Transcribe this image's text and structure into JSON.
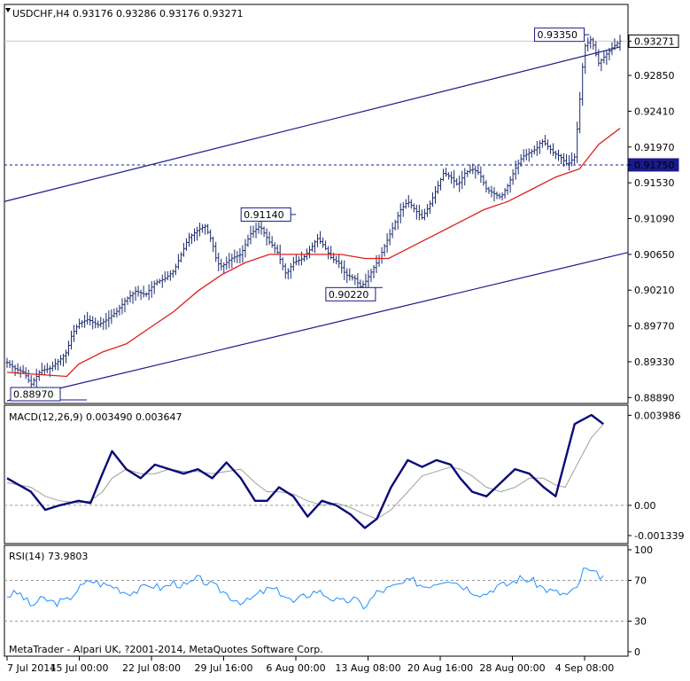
{
  "price_panel": {
    "header": "USDCHF,H4  0.93176 0.93286 0.93176 0.93271",
    "ticks": [
      "0.93271",
      "0.92850",
      "0.92410",
      "0.91970",
      "0.91750",
      "0.91530",
      "0.91090",
      "0.90650",
      "0.90210",
      "0.89770",
      "0.89330",
      "0.88890"
    ],
    "annotations": [
      "0.93350",
      "0.91140",
      "0.90220",
      "0.88970"
    ],
    "current_price_label": "0.93271",
    "hline_label": "0.91750"
  },
  "macd_panel": {
    "header": "MACD(12,26,9) 0.003490 0.003647",
    "ticks": [
      "0.003986",
      "0.00",
      "-0.001339"
    ]
  },
  "rsi_panel": {
    "header": "RSI(14) 73.9803",
    "ticks": [
      "100",
      "70",
      "30",
      "0"
    ],
    "copyright": "MetaTrader - Alpari UK, ?2001-2014, MetaQuotes Software Corp."
  },
  "time_axis": [
    "7 Jul 2014",
    "15 Jul 00:00",
    "22 Jul 08:00",
    "29 Jul 16:00",
    "6 Aug 00:00",
    "13 Aug 08:00",
    "20 Aug 16:00",
    "28 Aug 00:00",
    "4 Sep 08:00"
  ],
  "colors": {
    "bars": "#1a2a6c",
    "channel": "#1a1a8c",
    "ma": "#e01e1e",
    "macd": "#0a0a78",
    "signal": "#a0a0a0",
    "rsi": "#1e90ff",
    "dashed": "#1a1a8c"
  },
  "chart_data": [
    {
      "type": "candlestick",
      "title": "USDCHF,H4",
      "ylim": [
        0.8885,
        0.9345
      ],
      "x_labels": [
        "7 Jul 2014",
        "15 Jul 00:00",
        "22 Jul 08:00",
        "29 Jul 16:00",
        "6 Aug 00:00",
        "13 Aug 08:00",
        "20 Aug 16:00",
        "28 Aug 00:00",
        "4 Sep 08:00"
      ],
      "close_path": [
        [
          0,
          0.8932
        ],
        [
          0.3,
          0.8925
        ],
        [
          0.7,
          0.892
        ],
        [
          1.0,
          0.8905
        ],
        [
          1.4,
          0.8922
        ],
        [
          1.8,
          0.8925
        ],
        [
          2.2,
          0.8935
        ],
        [
          2.5,
          0.8945
        ],
        [
          2.7,
          0.8965
        ],
        [
          3.0,
          0.898
        ],
        [
          3.4,
          0.8985
        ],
        [
          3.8,
          0.8978
        ],
        [
          4.2,
          0.8985
        ],
        [
          4.6,
          0.8995
        ],
        [
          5.0,
          0.901
        ],
        [
          5.4,
          0.902
        ],
        [
          5.8,
          0.9015
        ],
        [
          6.2,
          0.903
        ],
        [
          6.6,
          0.9035
        ],
        [
          7.0,
          0.9045
        ],
        [
          7.3,
          0.9065
        ],
        [
          7.6,
          0.9085
        ],
        [
          8.0,
          0.9095
        ],
        [
          8.3,
          0.91
        ],
        [
          8.6,
          0.908
        ],
        [
          8.8,
          0.9055
        ],
        [
          9.0,
          0.905
        ],
        [
          9.4,
          0.906
        ],
        [
          9.8,
          0.9065
        ],
        [
          10.2,
          0.909
        ],
        [
          10.6,
          0.91
        ],
        [
          11.0,
          0.908
        ],
        [
          11.3,
          0.907
        ],
        [
          11.7,
          0.904
        ],
        [
          12.0,
          0.9055
        ],
        [
          12.4,
          0.906
        ],
        [
          12.8,
          0.9075
        ],
        [
          13.0,
          0.9085
        ],
        [
          13.3,
          0.9075
        ],
        [
          13.6,
          0.906
        ],
        [
          13.9,
          0.9055
        ],
        [
          14.2,
          0.904
        ],
        [
          14.6,
          0.9035
        ],
        [
          14.8,
          0.9025
        ],
        [
          15.0,
          0.903
        ],
        [
          15.3,
          0.9045
        ],
        [
          15.6,
          0.906
        ],
        [
          15.9,
          0.908
        ],
        [
          16.2,
          0.91
        ],
        [
          16.5,
          0.912
        ],
        [
          16.8,
          0.913
        ],
        [
          17.1,
          0.912
        ],
        [
          17.4,
          0.911
        ],
        [
          17.7,
          0.9125
        ],
        [
          18.0,
          0.9145
        ],
        [
          18.3,
          0.9165
        ],
        [
          18.6,
          0.916
        ],
        [
          18.9,
          0.915
        ],
        [
          19.2,
          0.9165
        ],
        [
          19.5,
          0.917
        ],
        [
          19.8,
          0.9165
        ],
        [
          20.1,
          0.9145
        ],
        [
          20.4,
          0.914
        ],
        [
          20.7,
          0.9135
        ],
        [
          21.0,
          0.915
        ],
        [
          21.3,
          0.917
        ],
        [
          21.6,
          0.9185
        ],
        [
          21.9,
          0.919
        ],
        [
          22.2,
          0.9195
        ],
        [
          22.4,
          0.9205
        ],
        [
          22.6,
          0.92
        ],
        [
          22.9,
          0.919
        ],
        [
          23.2,
          0.9185
        ],
        [
          23.5,
          0.9175
        ],
        [
          23.8,
          0.9185
        ],
        [
          24.0,
          0.925
        ],
        [
          24.2,
          0.932
        ],
        [
          24.5,
          0.933
        ],
        [
          24.8,
          0.93
        ],
        [
          25.1,
          0.931
        ],
        [
          25.4,
          0.932
        ],
        [
          25.7,
          0.9327
        ]
      ],
      "ma_path": [
        [
          0,
          0.892
        ],
        [
          2.5,
          0.8915
        ],
        [
          3.0,
          0.893
        ],
        [
          4.0,
          0.8945
        ],
        [
          5.0,
          0.8955
        ],
        [
          6.0,
          0.8975
        ],
        [
          7.0,
          0.8995
        ],
        [
          8.0,
          0.902
        ],
        [
          9.0,
          0.904
        ],
        [
          10.0,
          0.9055
        ],
        [
          11.0,
          0.9065
        ],
        [
          12.0,
          0.9065
        ],
        [
          13.0,
          0.9065
        ],
        [
          14.0,
          0.9065
        ],
        [
          15.0,
          0.906
        ],
        [
          16.0,
          0.906
        ],
        [
          17.0,
          0.9075
        ],
        [
          18.0,
          0.909
        ],
        [
          19.0,
          0.9105
        ],
        [
          20.0,
          0.912
        ],
        [
          21.0,
          0.913
        ],
        [
          22.0,
          0.9145
        ],
        [
          23.0,
          0.916
        ],
        [
          24.0,
          0.917
        ],
        [
          24.8,
          0.92
        ],
        [
          25.7,
          0.922
        ]
      ],
      "channel_upper": [
        [
          0,
          0.913
        ],
        [
          25.7,
          0.932
        ]
      ],
      "channel_lower": [
        [
          0,
          0.8885
        ],
        [
          25.7,
          0.9065
        ]
      ],
      "horizontal_line": 0.9175,
      "annotations": [
        {
          "label": "0.93350",
          "x": 23.9,
          "y": 0.9335
        },
        {
          "label": "0.91140",
          "x": 11.0,
          "y": 0.9114
        },
        {
          "label": "0.90220",
          "x": 15.0,
          "y": 0.9022
        },
        {
          "label": "0.88970",
          "x": 1.3,
          "y": 0.8897
        }
      ]
    },
    {
      "type": "line",
      "title": "MACD(12,26,9)",
      "ylim": [
        -0.0013,
        0.004
      ],
      "series": [
        {
          "name": "MACD",
          "points": [
            [
              0,
              0.0012
            ],
            [
              1,
              0.0006
            ],
            [
              1.6,
              -0.0002
            ],
            [
              2.2,
              0.0
            ],
            [
              3.0,
              0.0002
            ],
            [
              3.5,
              0.0001
            ],
            [
              4.0,
              0.0014
            ],
            [
              4.4,
              0.0024
            ],
            [
              5,
              0.0016
            ],
            [
              5.6,
              0.0012
            ],
            [
              6.2,
              0.0018
            ],
            [
              6.8,
              0.0016
            ],
            [
              7.4,
              0.0014
            ],
            [
              8.0,
              0.0016
            ],
            [
              8.6,
              0.0012
            ],
            [
              9.2,
              0.0019
            ],
            [
              9.8,
              0.0012
            ],
            [
              10.4,
              0.0002
            ],
            [
              10.9,
              0.0002
            ],
            [
              11.4,
              0.0008
            ],
            [
              12.0,
              0.0004
            ],
            [
              12.6,
              -0.0005
            ],
            [
              13.2,
              0.0002
            ],
            [
              13.8,
              0.0
            ],
            [
              14.4,
              -0.0004
            ],
            [
              15.0,
              -0.001
            ],
            [
              15.5,
              -0.0006
            ],
            [
              16.1,
              0.0008
            ],
            [
              16.8,
              0.002
            ],
            [
              17.4,
              0.0017
            ],
            [
              18.0,
              0.002
            ],
            [
              18.6,
              0.0018
            ],
            [
              19.0,
              0.0012
            ],
            [
              19.5,
              0.0006
            ],
            [
              20.1,
              0.0004
            ],
            [
              20.7,
              0.001
            ],
            [
              21.3,
              0.0016
            ],
            [
              21.9,
              0.0014
            ],
            [
              22.5,
              0.0008
            ],
            [
              23.0,
              0.0004
            ],
            [
              23.4,
              0.002
            ],
            [
              23.8,
              0.0036
            ],
            [
              24.5,
              0.004
            ],
            [
              25.0,
              0.0036
            ]
          ]
        },
        {
          "name": "Signal",
          "points": [
            [
              0,
              0.001
            ],
            [
              1,
              0.0008
            ],
            [
              1.6,
              0.0004
            ],
            [
              2.2,
              0.0002
            ],
            [
              3.0,
              0.0001
            ],
            [
              3.5,
              0.0002
            ],
            [
              4.0,
              0.0006
            ],
            [
              4.4,
              0.0012
            ],
            [
              5,
              0.0016
            ],
            [
              5.6,
              0.0014
            ],
            [
              6.2,
              0.0014
            ],
            [
              6.8,
              0.0016
            ],
            [
              7.4,
              0.0015
            ],
            [
              8.0,
              0.0015
            ],
            [
              8.6,
              0.0014
            ],
            [
              9.2,
              0.0015
            ],
            [
              9.8,
              0.0016
            ],
            [
              10.4,
              0.001
            ],
            [
              10.9,
              0.0006
            ],
            [
              11.4,
              0.0006
            ],
            [
              12.0,
              0.0005
            ],
            [
              12.6,
              0.0002
            ],
            [
              13.2,
              0.0
            ],
            [
              13.8,
              0.0001
            ],
            [
              14.4,
              -0.0001
            ],
            [
              15.0,
              -0.0004
            ],
            [
              15.5,
              -0.0006
            ],
            [
              16.1,
              -0.0002
            ],
            [
              16.8,
              0.0006
            ],
            [
              17.4,
              0.0013
            ],
            [
              18.0,
              0.0015
            ],
            [
              18.6,
              0.0017
            ],
            [
              19.0,
              0.0016
            ],
            [
              19.5,
              0.0013
            ],
            [
              20.1,
              0.0008
            ],
            [
              20.7,
              0.0006
            ],
            [
              21.3,
              0.0008
            ],
            [
              21.9,
              0.0012
            ],
            [
              22.5,
              0.0012
            ],
            [
              23.0,
              0.0009
            ],
            [
              23.4,
              0.0008
            ],
            [
              23.8,
              0.0016
            ],
            [
              24.5,
              0.003
            ],
            [
              25.0,
              0.0036
            ]
          ]
        }
      ]
    },
    {
      "type": "line",
      "title": "RSI(14)",
      "ylim": [
        0,
        100
      ],
      "levels": [
        70,
        30
      ],
      "series": [
        {
          "name": "RSI",
          "points": [
            [
              0,
              55
            ],
            [
              0.5,
              58
            ],
            [
              1.0,
              45
            ],
            [
              1.5,
              52
            ],
            [
              2.0,
              48
            ],
            [
              2.5,
              50
            ],
            [
              3.0,
              62
            ],
            [
              3.5,
              70
            ],
            [
              4.0,
              66
            ],
            [
              4.5,
              64
            ],
            [
              5.0,
              58
            ],
            [
              5.5,
              60
            ],
            [
              6.0,
              66
            ],
            [
              6.5,
              62
            ],
            [
              7.0,
              68
            ],
            [
              7.5,
              64
            ],
            [
              8.0,
              72
            ],
            [
              8.5,
              66
            ],
            [
              9.0,
              60
            ],
            [
              9.5,
              52
            ],
            [
              10.0,
              48
            ],
            [
              10.5,
              56
            ],
            [
              11.0,
              62
            ],
            [
              11.5,
              58
            ],
            [
              12.0,
              48
            ],
            [
              12.5,
              55
            ],
            [
              13.0,
              60
            ],
            [
              13.5,
              54
            ],
            [
              14.0,
              48
            ],
            [
              14.5,
              52
            ],
            [
              15.0,
              44
            ],
            [
              15.5,
              58
            ],
            [
              16.0,
              62
            ],
            [
              16.5,
              66
            ],
            [
              17.0,
              70
            ],
            [
              17.5,
              64
            ],
            [
              18.0,
              68
            ],
            [
              18.5,
              72
            ],
            [
              19.0,
              66
            ],
            [
              19.5,
              60
            ],
            [
              20.0,
              56
            ],
            [
              20.5,
              64
            ],
            [
              21.0,
              66
            ],
            [
              21.5,
              72
            ],
            [
              22.0,
              70
            ],
            [
              22.5,
              62
            ],
            [
              23.0,
              58
            ],
            [
              23.5,
              56
            ],
            [
              23.9,
              62
            ],
            [
              24.2,
              82
            ],
            [
              24.6,
              76
            ],
            [
              25.0,
              74
            ]
          ]
        }
      ]
    }
  ]
}
